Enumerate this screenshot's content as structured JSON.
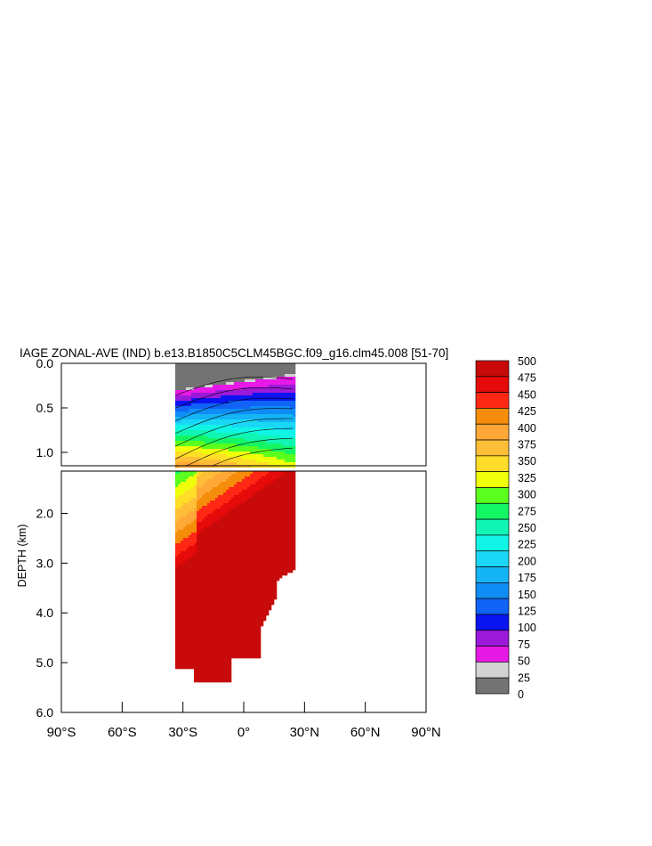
{
  "chart_data": {
    "type": "contour",
    "title": "IAGE ZONAL-AVE (IND) b.e13.B1850C5CLM45BGC.f09_g16.clm45.008 [51-70]",
    "ylabel": "DEPTH (km)",
    "xlabel": "",
    "xlim": [
      -90,
      90
    ],
    "ylim_top_panel": [
      0.0,
      1.15
    ],
    "ylim_bottom_panel": [
      1.15,
      6.0
    ],
    "x_ticks": [
      {
        "value": -90,
        "label": "90°S"
      },
      {
        "value": -60,
        "label": "60°S"
      },
      {
        "value": -30,
        "label": "30°S"
      },
      {
        "value": 0,
        "label": "0°"
      },
      {
        "value": 30,
        "label": "30°N"
      },
      {
        "value": 60,
        "label": "60°N"
      },
      {
        "value": 90,
        "label": "90°N"
      }
    ],
    "y_ticks_top": [
      {
        "value": 0.0,
        "label": "0.0"
      },
      {
        "value": 0.5,
        "label": "0.5"
      },
      {
        "value": 1.0,
        "label": "1.0"
      }
    ],
    "y_ticks_bottom": [
      {
        "value": 2.0,
        "label": "2.0"
      },
      {
        "value": 3.0,
        "label": "3.0"
      },
      {
        "value": 4.0,
        "label": "4.0"
      },
      {
        "value": 5.0,
        "label": "5.0"
      },
      {
        "value": 6.0,
        "label": "6.0"
      }
    ],
    "colorbar": {
      "levels": [
        "0",
        "25",
        "50",
        "75",
        "100",
        "125",
        "150",
        "175",
        "200",
        "225",
        "250",
        "275",
        "300",
        "325",
        "350",
        "375",
        "400",
        "425",
        "450",
        "475",
        "500"
      ],
      "colors": [
        "#737373",
        "#d3d3d3",
        "#e619e6",
        "#9b1ad9",
        "#0a14f0",
        "#0f64f5",
        "#0f8cf5",
        "#14b4f5",
        "#19d7f5",
        "#10f5e6",
        "#10f5b4",
        "#14f564",
        "#5aff1e",
        "#f0ff0a",
        "#ffdd28",
        "#ffbe37",
        "#ffa837",
        "#f58c0a",
        "#ff2814",
        "#e60a0a",
        "#c80a0a"
      ]
    },
    "field_notes": "ages increase with depth; oldest water (>450 yr) below ~2 km"
  }
}
